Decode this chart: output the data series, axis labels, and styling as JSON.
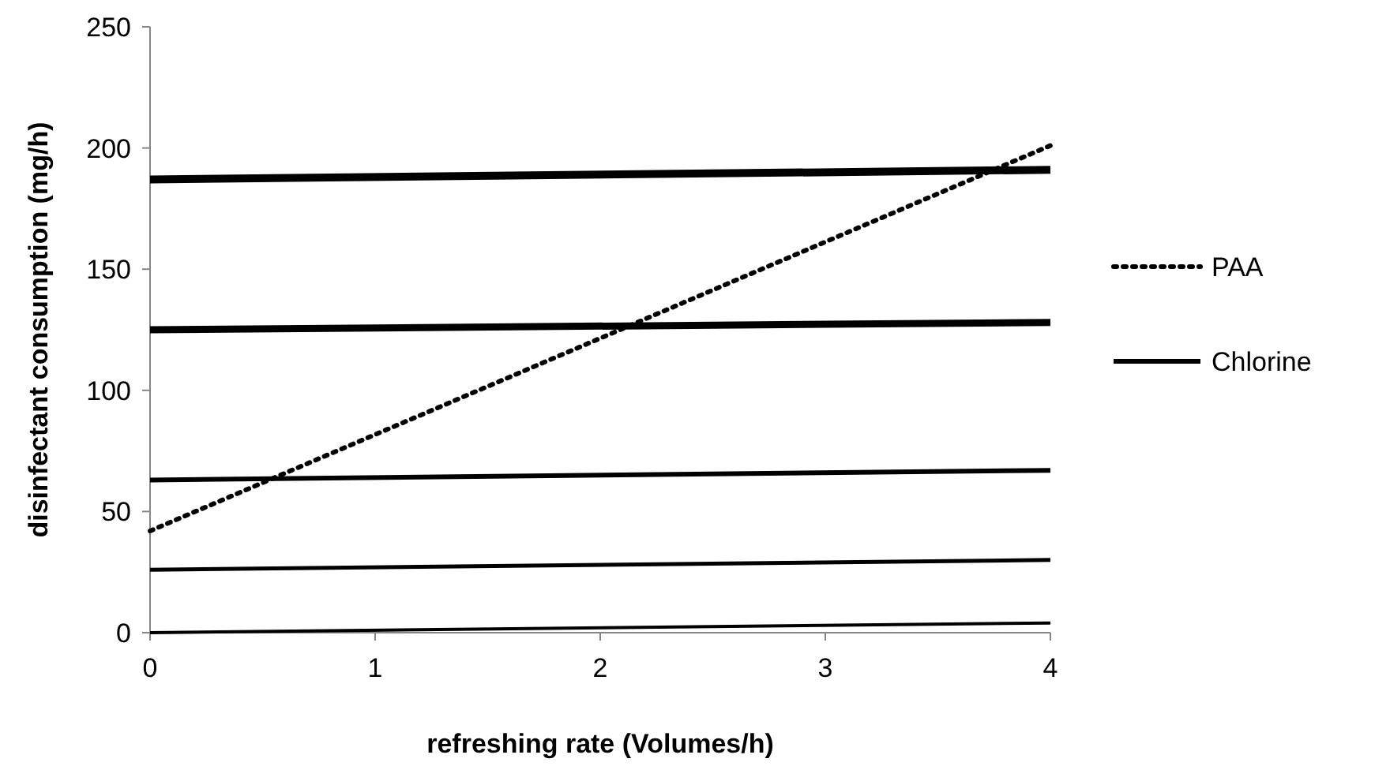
{
  "chart_data": {
    "type": "line",
    "xlabel": "refreshing rate (Volumes/h)",
    "ylabel": "disinfectant consumption (mg/h)",
    "xlim": [
      0,
      4
    ],
    "ylim": [
      0,
      250
    ],
    "xticks": [
      0,
      1,
      2,
      3,
      4
    ],
    "yticks": [
      0,
      50,
      100,
      150,
      200,
      250
    ],
    "legend": "right",
    "grid": false,
    "marker": "none",
    "x": [
      0,
      4
    ],
    "series": [
      {
        "name": "PAA",
        "color": "#000000",
        "line_style": "dotted",
        "values": [
          42,
          201
        ]
      },
      {
        "name": "Chlorine",
        "color": "#000000",
        "line_style": "solid",
        "values": [
          187,
          191
        ]
      },
      {
        "color": "#000000",
        "line_style": "solid",
        "values": [
          125,
          128
        ]
      },
      {
        "color": "#000000",
        "line_style": "solid",
        "values": [
          63,
          67
        ]
      },
      {
        "color": "#000000",
        "line_style": "solid",
        "values": [
          26,
          30
        ]
      },
      {
        "color": "#000000",
        "line_style": "solid",
        "values": [
          0,
          4
        ]
      }
    ]
  }
}
